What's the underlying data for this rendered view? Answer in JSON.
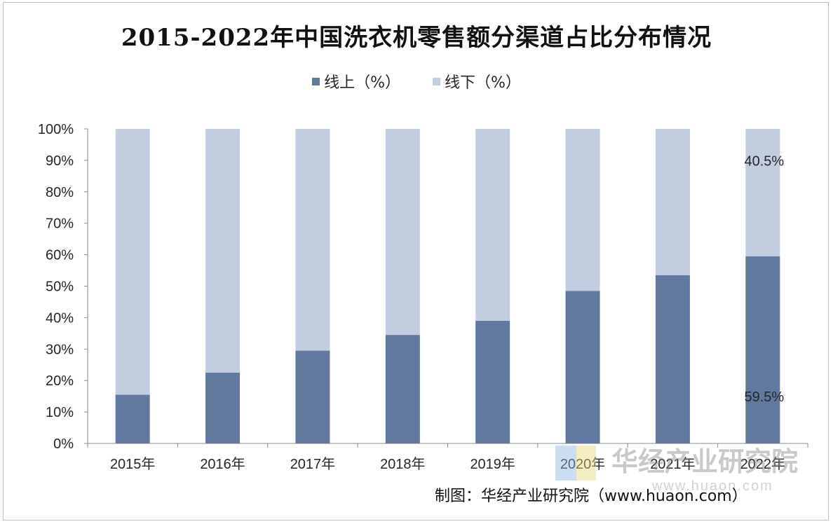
{
  "chart_data": {
    "type": "bar",
    "stacked": true,
    "title": "2015-2022年中国洗衣机零售额分渠道占比分布情况",
    "categories": [
      "2015年",
      "2016年",
      "2017年",
      "2018年",
      "2019年",
      "2020年",
      "2021年",
      "2022年"
    ],
    "series": [
      {
        "name": "线上（%）",
        "color": "#61799f",
        "values": [
          15.5,
          22.5,
          29.5,
          34.5,
          39.0,
          48.5,
          53.5,
          59.5
        ]
      },
      {
        "name": "线下（%）",
        "color": "#c2cde0",
        "values": [
          84.5,
          77.5,
          70.5,
          65.5,
          61.0,
          51.5,
          46.5,
          40.5
        ]
      }
    ],
    "ylim": [
      0,
      100
    ],
    "yticks": [
      "0%",
      "10%",
      "20%",
      "30%",
      "40%",
      "50%",
      "60%",
      "70%",
      "80%",
      "90%",
      "100%"
    ],
    "data_labels": [
      {
        "category": "2022年",
        "series": "线下（%）",
        "text": "40.5%"
      },
      {
        "category": "2022年",
        "series": "线上（%）",
        "text": "59.5%"
      }
    ],
    "legend_position": "top",
    "grid": false
  },
  "source_text": "制图：华经产业研究院（www.huaon.com）",
  "watermark": {
    "text": "华经产业研究院",
    "url": "www.huaon.com"
  }
}
